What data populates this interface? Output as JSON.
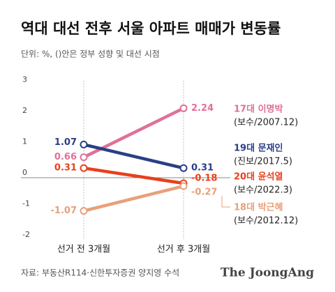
{
  "chart_data": {
    "type": "line",
    "title": "역대 대선 전후 서울 아파트 매매가 변동률",
    "subtitle": "단위: %, ()안은 정부 성향 및 대선 시점",
    "categories": [
      "선거 전 3개월",
      "선거 후 3개월"
    ],
    "series": [
      {
        "name": "17대 이명박",
        "note": "(보수/2007.12)",
        "color": "#e0709a",
        "values": [
          0.66,
          2.24
        ]
      },
      {
        "name": "19대 문재인",
        "note": "(진보/2017.5)",
        "color": "#2a3f87",
        "values": [
          1.07,
          0.31
        ]
      },
      {
        "name": "20대 윤석열",
        "note": "(보수/2022.3)",
        "color": "#e8401c",
        "values": [
          0.31,
          -0.18
        ]
      },
      {
        "name": "18대 박근혜",
        "note": "(보수/2012.12)",
        "color": "#e8a07a",
        "values": [
          -1.07,
          -0.27
        ]
      }
    ],
    "ylim": [
      -2,
      3
    ],
    "yticks": [
      -2,
      -1,
      0,
      1,
      2,
      3
    ],
    "source": "자료: 부동산R114·신한투자증권 양지영 수석",
    "logo": "The JoongAng"
  }
}
